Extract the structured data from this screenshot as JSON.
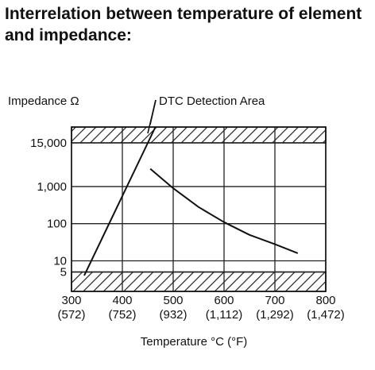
{
  "chart_data": {
    "type": "line",
    "title": "Interrelation between temperature of element and impedance:",
    "ylabel": "Impedance Ω",
    "xlabel": "Temperature °C (°F)",
    "annotation": "DTC Detection Area",
    "x_ticks": [
      {
        "value": 300,
        "label": "300",
        "sublabel": "(572)"
      },
      {
        "value": 400,
        "label": "400",
        "sublabel": "(752)"
      },
      {
        "value": 500,
        "label": "500",
        "sublabel": "(932)"
      },
      {
        "value": 600,
        "label": "600",
        "sublabel": "(1,112)"
      },
      {
        "value": 700,
        "label": "700",
        "sublabel": "(1,292)"
      },
      {
        "value": 800,
        "label": "800",
        "sublabel": "(1,472)"
      }
    ],
    "y_ticks": [
      {
        "value": 5,
        "label": "5"
      },
      {
        "value": 10,
        "label": "10"
      },
      {
        "value": 100,
        "label": "100"
      },
      {
        "value": 1000,
        "label": "1,000"
      },
      {
        "value": 15000,
        "label": "15,000"
      }
    ],
    "y_scale": "log",
    "xlim": [
      300,
      800
    ],
    "ylim": [
      1.5,
      40000
    ],
    "hatched_bands": [
      {
        "ymin": 1.5,
        "ymax": 5
      },
      {
        "ymin": 15000,
        "ymax": 40000
      }
    ],
    "series": [
      {
        "style": "solid",
        "x": [
          455,
          500,
          550,
          600,
          650,
          700,
          745
        ],
        "y": [
          3000,
          900,
          280,
          110,
          50,
          28,
          16
        ]
      },
      {
        "style": "solid",
        "x": [
          325,
          465
        ],
        "y": [
          4,
          40000
        ]
      }
    ],
    "grid": true
  }
}
